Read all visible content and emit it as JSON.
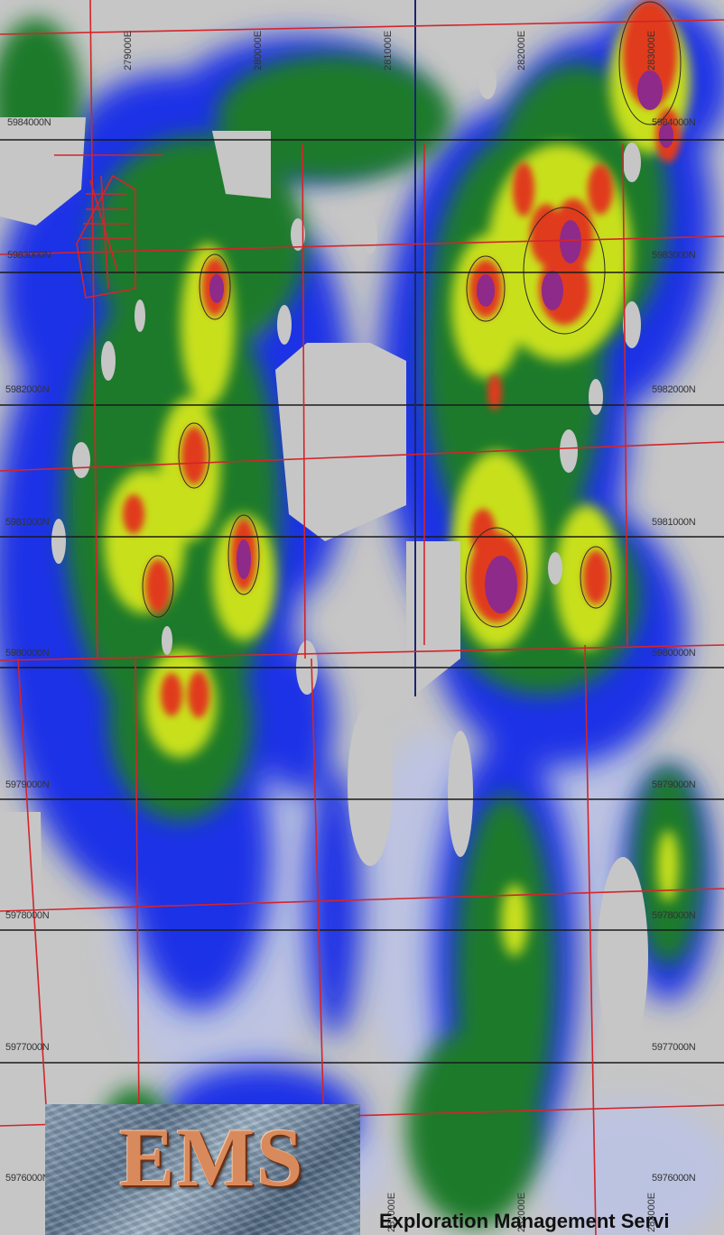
{
  "map": {
    "northing_labels": [
      "5984000N",
      "5983000N",
      "5982000N",
      "5981000N",
      "5980000N",
      "5979000N",
      "5978000N",
      "5977000N",
      "5976000N"
    ],
    "easting_labels": [
      "279000E",
      "280000E",
      "281000E",
      "282000E",
      "283000E"
    ],
    "anomaly_colors": {
      "background": "#c6c6c6",
      "low": "#1e32e6",
      "mid": "#1f7a2c",
      "high": "#c8e01e",
      "peak": "#e03a1e",
      "max": "#8e2a8a"
    }
  },
  "logo": {
    "text": "EMS"
  },
  "company": {
    "name": "Exploration Management Servi"
  }
}
